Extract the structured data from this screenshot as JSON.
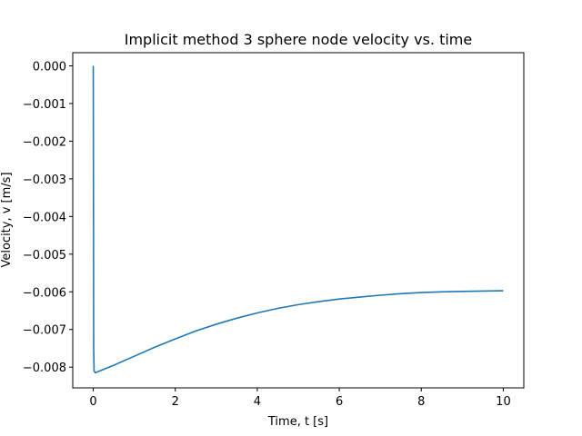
{
  "chart_data": {
    "type": "line",
    "title": "Implicit method 3 sphere node velocity vs. time",
    "xlabel": "Time, t [s]",
    "ylabel": "Velocity, v [m/s]",
    "xlim": [
      -0.5,
      10.5
    ],
    "ylim": [
      -0.00855,
      0.00035
    ],
    "xticks": [
      0,
      2,
      4,
      6,
      8,
      10
    ],
    "xtick_labels": [
      "0",
      "2",
      "4",
      "6",
      "8",
      "10"
    ],
    "yticks": [
      0.0,
      -0.001,
      -0.002,
      -0.003,
      -0.004,
      -0.005,
      -0.006,
      -0.007,
      -0.008
    ],
    "ytick_labels": [
      "0.000",
      "−0.001",
      "−0.002",
      "−0.003",
      "−0.004",
      "−0.005",
      "−0.006",
      "−0.007",
      "−0.008"
    ],
    "grid": false,
    "colors": {
      "line": "#1f77b4",
      "axes": "#000000",
      "background": "#ffffff"
    },
    "series": [
      {
        "x": [
          0.0,
          0.005,
          0.01,
          0.02,
          0.05,
          0.5,
          1.0,
          1.5,
          2.0,
          2.5,
          3.0,
          3.5,
          4.0,
          4.5,
          5.0,
          5.5,
          6.0,
          6.5,
          7.0,
          7.5,
          8.0,
          8.5,
          9.0,
          9.5,
          10.0
        ],
        "y": [
          0.0,
          -0.003,
          -0.0075,
          -0.0081,
          -0.00815,
          -0.00795,
          -0.00771,
          -0.00747,
          -0.00725,
          -0.00704,
          -0.00686,
          -0.0067,
          -0.00656,
          -0.00644,
          -0.00634,
          -0.00626,
          -0.00619,
          -0.00614,
          -0.00609,
          -0.00605,
          -0.00602,
          -0.006,
          -0.00599,
          -0.00598,
          -0.00597
        ]
      }
    ]
  }
}
